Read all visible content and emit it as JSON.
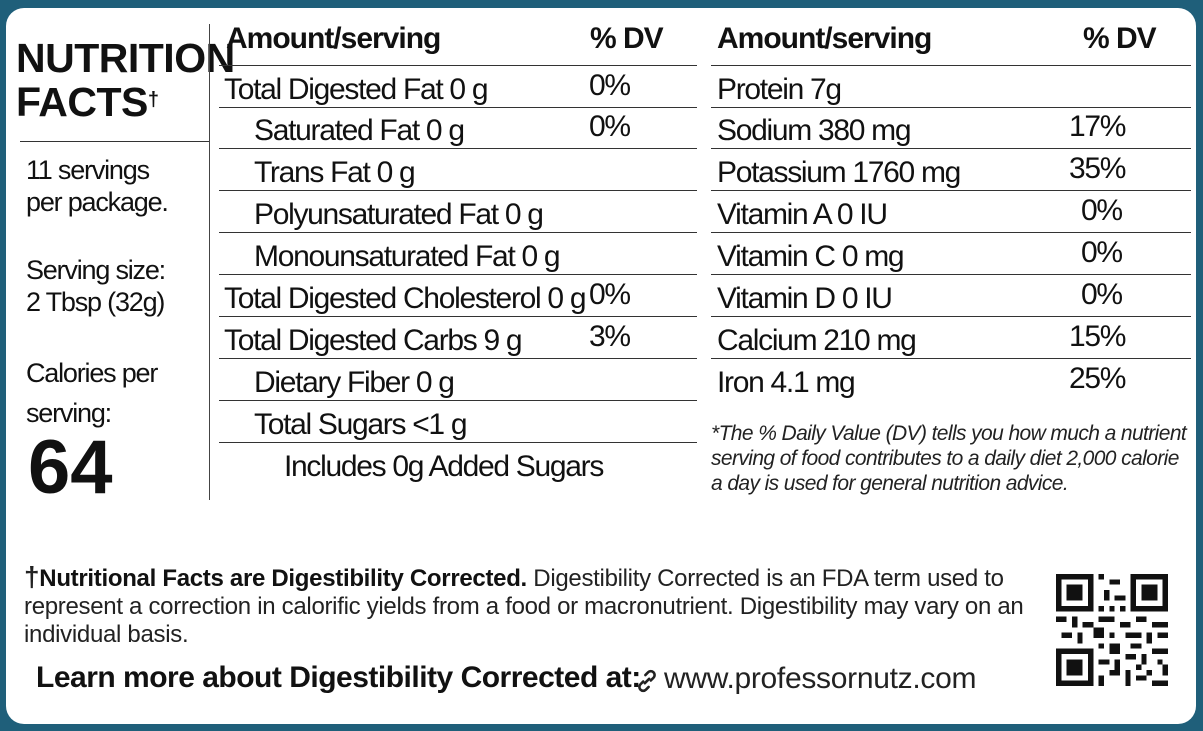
{
  "title": {
    "line1": "NUTRITION",
    "line2": "FACTS",
    "dagger": "†"
  },
  "servings": {
    "line1": "11 servings",
    "line2": "per package."
  },
  "serving_size": {
    "line1": "Serving size:",
    "line2": "2 Tbsp (32g)"
  },
  "calories": {
    "line1": "Calories per",
    "line2": "serving:",
    "value": "64"
  },
  "left_table": {
    "header_amount": "Amount/serving",
    "header_dv": "% DV",
    "rows": [
      {
        "label": "Total Digested Fat 0 g",
        "dv": "0%"
      },
      {
        "label": "Saturated Fat 0 g",
        "dv": "0%"
      },
      {
        "label": "Trans Fat 0 g",
        "dv": ""
      },
      {
        "label": "Polyunsaturated Fat 0 g",
        "dv": ""
      },
      {
        "label": "Monounsaturated Fat 0 g",
        "dv": ""
      },
      {
        "label": "Total Digested Cholesterol 0 g",
        "dv": "0%"
      },
      {
        "label": "Total Digested Carbs 9 g",
        "dv": "3%"
      },
      {
        "label": "Dietary Fiber 0 g",
        "dv": ""
      },
      {
        "label": "Total Sugars <1 g",
        "dv": ""
      },
      {
        "label": "Includes 0g Added Sugars",
        "dv": ""
      }
    ]
  },
  "right_table": {
    "header_amount": "Amount/serving",
    "header_dv": "% DV",
    "rows": [
      {
        "label": "Protein 7g",
        "dv": ""
      },
      {
        "label": "Sodium 380 mg",
        "dv": "17%"
      },
      {
        "label": "Potassium 1760 mg",
        "dv": "35%"
      },
      {
        "label": "Vitamin A 0 IU",
        "dv": "0%"
      },
      {
        "label": "Vitamin C 0 mg",
        "dv": "0%"
      },
      {
        "label": "Vitamin D 0 IU",
        "dv": "0%"
      },
      {
        "label": "Calcium 210 mg",
        "dv": "15%"
      },
      {
        "label": "Iron 4.1 mg",
        "dv": "25%"
      }
    ]
  },
  "dv_footnote": "*The % Daily Value (DV) tells you how much a nutrient serving of food contributes to a daily diet 2,000 calorie a day is used for general nutrition advice.",
  "bottom_note": {
    "dagger": "†",
    "bold": "Nutritional Facts are Digestibility Corrected.",
    "text": " Digestibility Corrected is an FDA term used to represent a correction in calorific yields from a food or macronutrient. Digestibility may vary on an individual basis."
  },
  "learn_more": "Learn more about Digestibility Corrected at:",
  "url": "www.professornutz.com",
  "icons": {
    "link": "link-icon",
    "qr": "qr-code-icon"
  },
  "colors": {
    "background": "#1f5f7a",
    "panel": "#ffffff",
    "text": "#111111"
  }
}
